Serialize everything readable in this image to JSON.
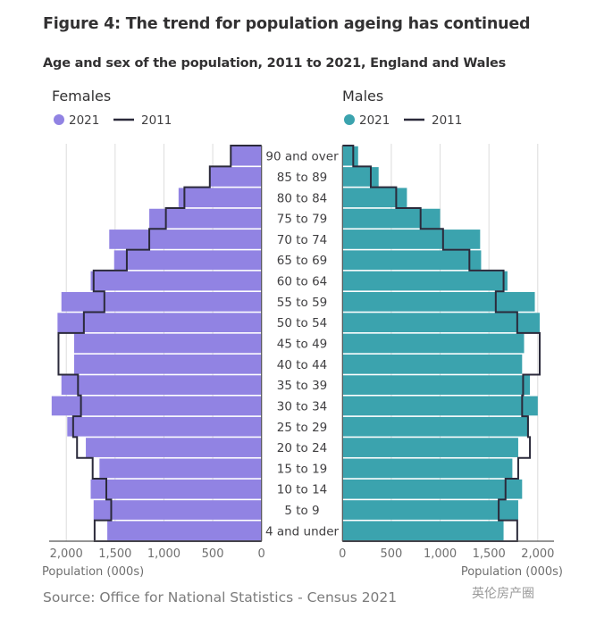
{
  "title": "Figure 4: The trend for population ageing has continued",
  "subtitle": "Age and sex of the population, 2011 to 2021, England and Wales",
  "source": "Source: Office for National Statistics - Census 2021",
  "watermark": "英伦房产圈",
  "chart_data": {
    "type": "bar",
    "orientation": "horizontal population pyramid",
    "categories": [
      "90 and over",
      "85 to 89",
      "80 to 84",
      "75 to 79",
      "70 to 74",
      "65 to 69",
      "60 to 64",
      "55 to 59",
      "50 to 54",
      "45 to 49",
      "40 to 44",
      "35 to 39",
      "30 to 34",
      "25 to 29",
      "20 to 24",
      "15 to 19",
      "10 to 14",
      "5 to 9",
      "4 and under"
    ],
    "panels": [
      {
        "title": "Females",
        "xlabel": "Population (000s)",
        "xlim": [
          0,
          2000
        ],
        "direction": "reversed",
        "ticks": [
          "2,000",
          "1,500",
          "1,000",
          "500",
          "0"
        ],
        "tick_values": [
          2000,
          1500,
          1000,
          500,
          0
        ],
        "series": [
          {
            "name": "2021",
            "style": "bar",
            "color": "#9183e3",
            "values": [
              310,
              530,
              850,
              1150,
              1560,
              1510,
              1750,
              2050,
              2090,
              1920,
              1920,
              2050,
              2150,
              1990,
              1800,
              1660,
              1750,
              1720,
              1580
            ]
          },
          {
            "name": "2011",
            "style": "step-line",
            "color": "#2b2a3b",
            "values": [
              315,
              530,
              790,
              980,
              1150,
              1380,
              1720,
              1610,
              1820,
              2080,
              2080,
              1880,
              1850,
              1930,
              1890,
              1730,
              1590,
              1540,
              1710
            ]
          }
        ]
      },
      {
        "title": "Males",
        "xlabel": "Population (000s)",
        "xlim": [
          0,
          2000
        ],
        "direction": "normal",
        "ticks": [
          "0",
          "500",
          "1,000",
          "1,500",
          "2,000"
        ],
        "tick_values": [
          0,
          500,
          1000,
          1500,
          2000
        ],
        "series": [
          {
            "name": "2021",
            "style": "bar",
            "color": "#3ba3ae",
            "values": [
              160,
              370,
              660,
              1000,
              1410,
              1420,
              1690,
              1970,
              2020,
              1860,
              1840,
              1920,
              2000,
              1910,
              1800,
              1740,
              1840,
              1800,
              1650
            ]
          },
          {
            "name": "2011",
            "style": "step-line",
            "color": "#2b2a3b",
            "values": [
              110,
              290,
              550,
              800,
              1030,
              1300,
              1650,
              1570,
              1790,
              2020,
              2020,
              1850,
              1840,
              1900,
              1920,
              1800,
              1670,
              1600,
              1790
            ]
          }
        ]
      }
    ],
    "grid": true,
    "legend": "top, per panel"
  }
}
